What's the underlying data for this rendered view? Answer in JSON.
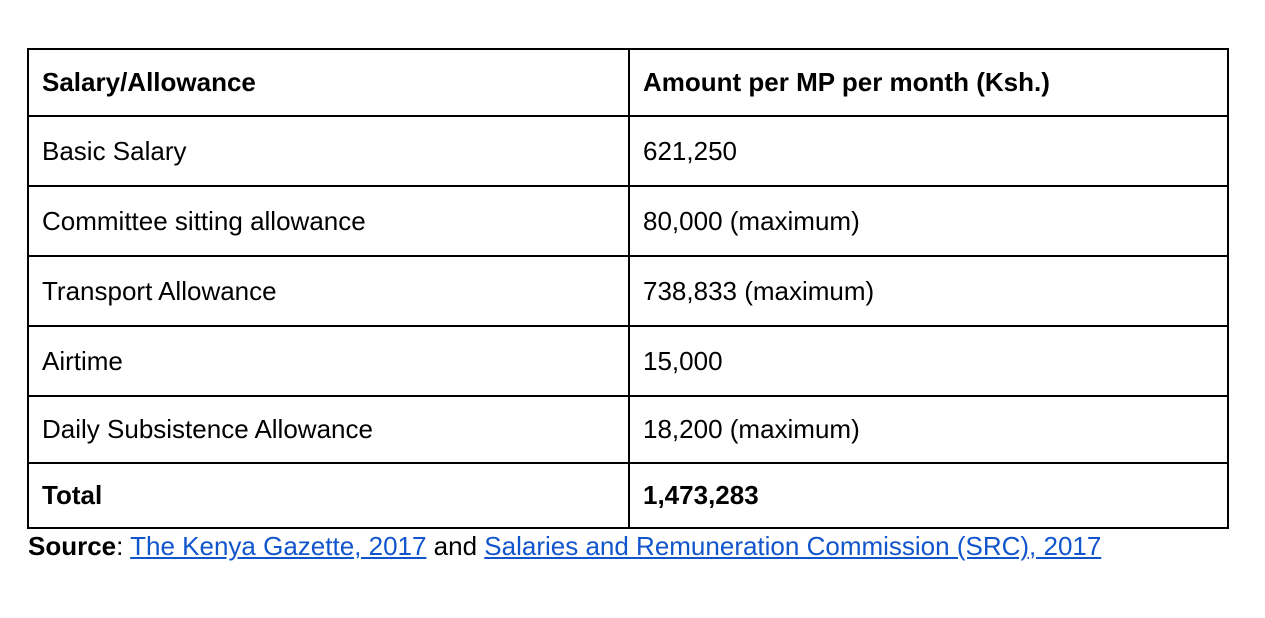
{
  "table": {
    "headers": [
      "Salary/Allowance",
      "Amount per MP per month (Ksh.)"
    ],
    "rows": [
      [
        "Basic Salary",
        "621,250"
      ],
      [
        "Committee sitting allowance",
        "80,000 (maximum)"
      ],
      [
        "Transport Allowance",
        "738,833 (maximum)"
      ],
      [
        "Airtime",
        "15,000"
      ],
      [
        "Daily Subsistence Allowance",
        "18,200 (maximum)"
      ]
    ],
    "total": [
      "Total",
      "1,473,283"
    ]
  },
  "source": {
    "label": "Source",
    "colon": ": ",
    "link1": "The Kenya Gazette, 2017",
    "and": " and ",
    "link2": "Salaries and Remuneration Commission (SRC), 2017"
  },
  "colors": {
    "link": "#1155cc"
  }
}
